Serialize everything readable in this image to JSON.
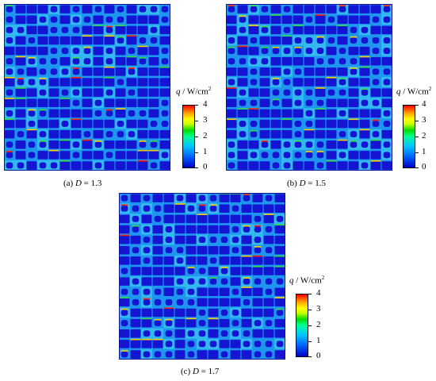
{
  "chart_data": [
    {
      "type": "heatmap",
      "caption_prefix": "(a) ",
      "caption_var": "D",
      "caption_value": " = 1.3",
      "colorbar": {
        "label_var": "q",
        "label_unit": " / W/cm",
        "label_exp": "2",
        "ticks": [
          "4",
          "3",
          "2",
          "1",
          "0"
        ],
        "range": [
          0,
          4
        ]
      },
      "grid": {
        "rows": 16,
        "cols": 15
      }
    },
    {
      "type": "heatmap",
      "caption_prefix": "(b) ",
      "caption_var": "D",
      "caption_value": " = 1.5",
      "colorbar": {
        "label_var": "q",
        "label_unit": " / W/cm",
        "label_exp": "2",
        "ticks": [
          "4",
          "3",
          "2",
          "1",
          "0"
        ],
        "range": [
          0,
          4
        ]
      },
      "grid": {
        "rows": 16,
        "cols": 15
      }
    },
    {
      "type": "heatmap",
      "caption_prefix": "(c) ",
      "caption_var": "D",
      "caption_value": " = 1.7",
      "colorbar": {
        "label_var": "q",
        "label_unit": " / W/cm",
        "label_exp": "2",
        "ticks": [
          "4",
          "3",
          "2",
          "1",
          "0"
        ],
        "range": [
          0,
          4
        ]
      },
      "grid": {
        "rows": 16,
        "cols": 15
      }
    }
  ],
  "colors": {
    "background": "#1e96f0",
    "block": "#1414d2",
    "cell_light": "#3cc8f0",
    "hot_red": "#ff2000",
    "hot_yellow": "#ffd000",
    "hot_green": "#30e040"
  }
}
